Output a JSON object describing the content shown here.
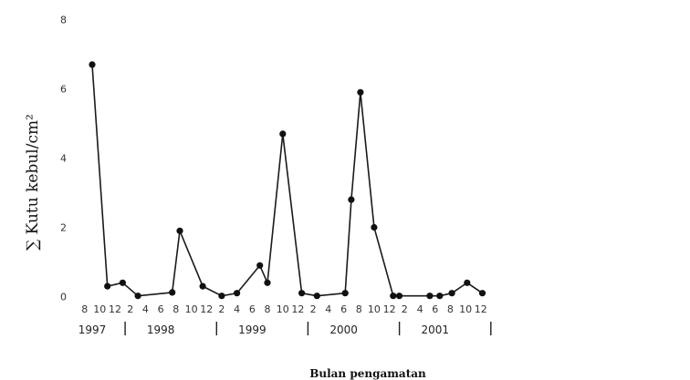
{
  "chart_data": {
    "type": "line",
    "ylabel": "∑ Kutu kebul/cm²",
    "xlabel": "Bulan pengamatan",
    "ylim": [
      0,
      8
    ],
    "y_ticks": [
      "0",
      "2",
      "4",
      "6",
      "8"
    ],
    "x_ticks": [
      {
        "m": 8,
        "label": "8"
      },
      {
        "m": 10,
        "label": "10"
      },
      {
        "m": 12,
        "label": "12"
      },
      {
        "m": 14,
        "label": "2"
      },
      {
        "m": 16,
        "label": "4"
      },
      {
        "m": 18,
        "label": "6"
      },
      {
        "m": 20,
        "label": "8"
      },
      {
        "m": 22,
        "label": "10"
      },
      {
        "m": 24,
        "label": "12"
      },
      {
        "m": 26,
        "label": "2"
      },
      {
        "m": 28,
        "label": "4"
      },
      {
        "m": 30,
        "label": "6"
      },
      {
        "m": 32,
        "label": "8"
      },
      {
        "m": 34,
        "label": "10"
      },
      {
        "m": 36,
        "label": "12"
      },
      {
        "m": 38,
        "label": "2"
      },
      {
        "m": 40,
        "label": "4"
      },
      {
        "m": 42,
        "label": "6"
      },
      {
        "m": 44,
        "label": "8"
      },
      {
        "m": 46,
        "label": "10"
      },
      {
        "m": 48,
        "label": "12"
      },
      {
        "m": 50,
        "label": "2"
      },
      {
        "m": 52,
        "label": "4"
      },
      {
        "m": 54,
        "label": "6"
      },
      {
        "m": 56,
        "label": "8"
      },
      {
        "m": 58,
        "label": "10"
      },
      {
        "m": 60,
        "label": "12"
      }
    ],
    "years": [
      {
        "label": "1997",
        "m": 9
      },
      {
        "label": "1998",
        "m": 18
      },
      {
        "label": "1999",
        "m": 30
      },
      {
        "label": "2000",
        "m": 42
      },
      {
        "label": "2001",
        "m": 54
      }
    ],
    "year_separators": [
      12,
      24,
      36,
      48,
      60
    ],
    "series": [
      {
        "values": [
          {
            "m": 9,
            "y": 6.7
          },
          {
            "m": 11,
            "y": 0.3
          },
          {
            "m": 13,
            "y": 0.4
          },
          {
            "m": 15,
            "y": 0.02
          },
          {
            "m": 19.5,
            "y": 0.12
          },
          {
            "m": 20.5,
            "y": 1.9
          },
          {
            "m": 23.5,
            "y": 0.3
          },
          {
            "m": 26,
            "y": 0.02
          },
          {
            "m": 28,
            "y": 0.1
          },
          {
            "m": 31,
            "y": 0.9
          },
          {
            "m": 32,
            "y": 0.4
          },
          {
            "m": 34,
            "y": 4.7
          },
          {
            "m": 36.5,
            "y": 0.1
          },
          {
            "m": 38.5,
            "y": 0.02
          },
          {
            "m": 42.2,
            "y": 0.1
          },
          {
            "m": 43,
            "y": 2.8
          },
          {
            "m": 44.2,
            "y": 5.9
          },
          {
            "m": 46,
            "y": 2.0
          },
          {
            "m": 48.5,
            "y": 0.02
          },
          {
            "m": 49.3,
            "y": 0.02
          },
          {
            "m": 53.3,
            "y": 0.02
          },
          {
            "m": 54.6,
            "y": 0.02
          },
          {
            "m": 56.2,
            "y": 0.1
          },
          {
            "m": 58.2,
            "y": 0.4
          },
          {
            "m": 60.2,
            "y": 0.1
          }
        ]
      }
    ]
  }
}
